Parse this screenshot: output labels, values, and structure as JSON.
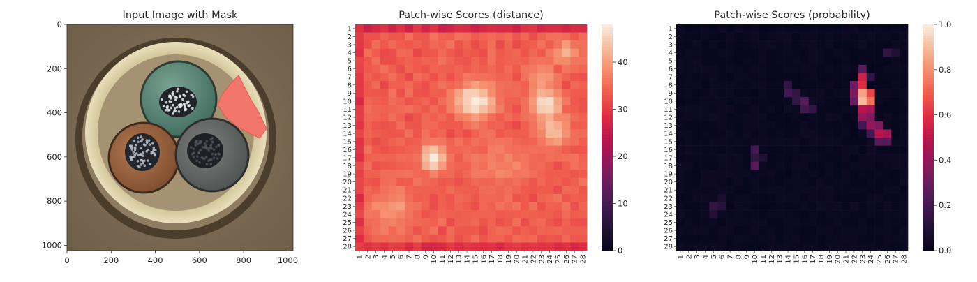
{
  "figure": {
    "panels": [
      {
        "title": "Input Image with Mask"
      },
      {
        "title": "Patch-wise Scores (distance)"
      },
      {
        "title": "Patch-wise Scores (probability)"
      }
    ]
  },
  "chart_data": [
    {
      "type": "image",
      "title": "Input Image with Mask",
      "xlim": [
        0,
        1024
      ],
      "ylim": [
        1024,
        0
      ],
      "xticks": [
        0,
        200,
        400,
        600,
        800,
        1000
      ],
      "yticks": [
        0,
        200,
        400,
        600,
        800,
        1000
      ],
      "content": "cable cross-section with three insulated conductors (green, brown, grey) and a red mask region",
      "colors": {
        "background": "#7b6a52",
        "ring": "#ddd3ac",
        "green": "#5d8a7a",
        "brown": "#9a6440",
        "grey": "#626664",
        "mask": "#f0756a"
      }
    },
    {
      "type": "heatmap",
      "title": "Patch-wise Scores (distance)",
      "rows": 28,
      "cols": 28,
      "row_labels": [
        "1",
        "2",
        "3",
        "4",
        "5",
        "6",
        "7",
        "8",
        "9",
        "10",
        "11",
        "12",
        "13",
        "14",
        "15",
        "16",
        "17",
        "18",
        "19",
        "20",
        "21",
        "22",
        "23",
        "24",
        "25",
        "26",
        "27",
        "28"
      ],
      "col_labels": [
        "1",
        "2",
        "3",
        "4",
        "5",
        "6",
        "7",
        "8",
        "9",
        "10",
        "11",
        "12",
        "13",
        "14",
        "15",
        "16",
        "17",
        "18",
        "19",
        "20",
        "21",
        "22",
        "23",
        "24",
        "25",
        "26",
        "27",
        "28"
      ],
      "colormap": "rocket",
      "vmin": 0,
      "vmax": 48,
      "colorbar_ticks": [
        0,
        10,
        20,
        30,
        40
      ],
      "background_value": 33,
      "edge_values": {
        "top_row": 26,
        "bottom_row": 27,
        "left_col": 28
      },
      "hotspots": [
        {
          "row": 10,
          "col": 15,
          "peak": 48,
          "spread_rows": 1.6,
          "spread_cols": 1.8
        },
        {
          "row": 10.5,
          "col": 23.5,
          "peak": 48,
          "spread_rows": 1.5,
          "spread_cols": 1.3
        },
        {
          "row": 13.5,
          "col": 24.5,
          "peak": 44,
          "spread_rows": 1.5,
          "spread_cols": 1.4
        },
        {
          "row": 7,
          "col": 23,
          "peak": 41,
          "spread_rows": 1.3,
          "spread_cols": 1.3
        },
        {
          "row": 17,
          "col": 10,
          "peak": 48,
          "spread_rows": 1.3,
          "spread_cols": 1.1
        },
        {
          "row": 4,
          "col": 26,
          "peak": 41,
          "spread_rows": 1.2,
          "spread_cols": 1.3
        },
        {
          "row": 23.5,
          "col": 5,
          "peak": 40,
          "spread_rows": 2.0,
          "spread_cols": 2.0
        },
        {
          "row": 18,
          "col": 18,
          "peak": 38,
          "spread_rows": 2.0,
          "spread_cols": 2.5
        }
      ]
    },
    {
      "type": "heatmap",
      "title": "Patch-wise Scores (probability)",
      "rows": 28,
      "cols": 28,
      "row_labels": [
        "1",
        "2",
        "3",
        "4",
        "5",
        "6",
        "7",
        "8",
        "9",
        "10",
        "11",
        "12",
        "13",
        "14",
        "15",
        "16",
        "17",
        "18",
        "19",
        "20",
        "21",
        "22",
        "23",
        "24",
        "25",
        "26",
        "27",
        "28"
      ],
      "col_labels": [
        "1",
        "2",
        "3",
        "4",
        "5",
        "6",
        "7",
        "8",
        "9",
        "10",
        "11",
        "12",
        "13",
        "14",
        "15",
        "16",
        "17",
        "18",
        "19",
        "20",
        "21",
        "22",
        "23",
        "24",
        "25",
        "26",
        "27",
        "28"
      ],
      "colormap": "rocket",
      "vmin": 0,
      "vmax": 1.0,
      "colorbar_ticks": [
        0.0,
        0.2,
        0.4,
        0.6,
        0.8,
        1.0
      ],
      "colorbar_labels": [
        "0.0",
        "0.2",
        "0.4",
        "0.6",
        "0.8",
        "1.0"
      ],
      "background_value": 0.01,
      "cells": [
        {
          "row": 7,
          "col": 23,
          "value": 0.55
        },
        {
          "row": 8,
          "col": 23,
          "value": 0.6
        },
        {
          "row": 9,
          "col": 23,
          "value": 0.85
        },
        {
          "row": 10,
          "col": 23,
          "value": 0.9
        },
        {
          "row": 9,
          "col": 24,
          "value": 0.65
        },
        {
          "row": 10,
          "col": 24,
          "value": 0.75
        },
        {
          "row": 11,
          "col": 23,
          "value": 0.5
        },
        {
          "row": 11,
          "col": 24,
          "value": 0.45
        },
        {
          "row": 8,
          "col": 22,
          "value": 0.3
        },
        {
          "row": 9,
          "col": 22,
          "value": 0.35
        },
        {
          "row": 10,
          "col": 22,
          "value": 0.3
        },
        {
          "row": 12,
          "col": 23,
          "value": 0.4
        },
        {
          "row": 12,
          "col": 24,
          "value": 0.35
        },
        {
          "row": 13,
          "col": 24,
          "value": 0.4
        },
        {
          "row": 13,
          "col": 25,
          "value": 0.35
        },
        {
          "row": 14,
          "col": 25,
          "value": 0.5
        },
        {
          "row": 14,
          "col": 26,
          "value": 0.45
        },
        {
          "row": 15,
          "col": 25,
          "value": 0.25
        },
        {
          "row": 15,
          "col": 26,
          "value": 0.25
        },
        {
          "row": 6,
          "col": 23,
          "value": 0.25
        },
        {
          "row": 7,
          "col": 24,
          "value": 0.15
        },
        {
          "row": 13,
          "col": 23,
          "value": 0.2
        },
        {
          "row": 14,
          "col": 24,
          "value": 0.2
        },
        {
          "row": 4,
          "col": 26,
          "value": 0.15
        },
        {
          "row": 4,
          "col": 27,
          "value": 0.1
        },
        {
          "row": 8,
          "col": 14,
          "value": 0.15
        },
        {
          "row": 9,
          "col": 14,
          "value": 0.2
        },
        {
          "row": 9,
          "col": 15,
          "value": 0.15
        },
        {
          "row": 10,
          "col": 16,
          "value": 0.25
        },
        {
          "row": 11,
          "col": 16,
          "value": 0.2
        },
        {
          "row": 11,
          "col": 17,
          "value": 0.15
        },
        {
          "row": 10,
          "col": 15,
          "value": 0.15
        },
        {
          "row": 16,
          "col": 10,
          "value": 0.2
        },
        {
          "row": 17,
          "col": 10,
          "value": 0.15
        },
        {
          "row": 18,
          "col": 10,
          "value": 0.25
        },
        {
          "row": 17,
          "col": 11,
          "value": 0.1
        },
        {
          "row": 23,
          "col": 5,
          "value": 0.15
        },
        {
          "row": 23,
          "col": 6,
          "value": 0.12
        },
        {
          "row": 24,
          "col": 5,
          "value": 0.1
        },
        {
          "row": 22,
          "col": 6,
          "value": 0.08
        }
      ]
    }
  ]
}
